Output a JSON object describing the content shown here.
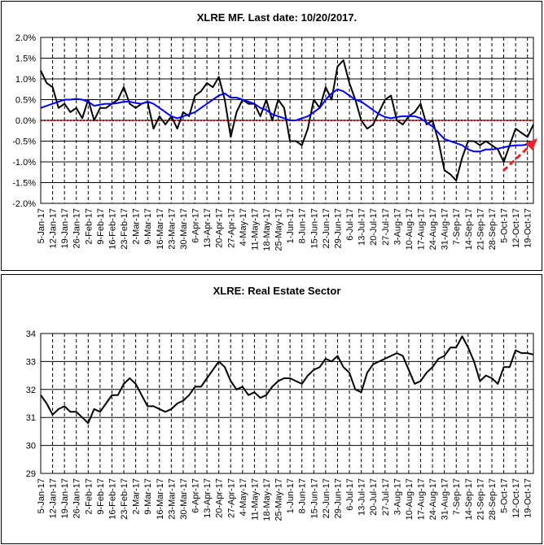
{
  "chart_data": [
    {
      "type": "line",
      "title": "XLRE MF. Last date: 10/20/2017.",
      "categories": [
        "5-Jan-17",
        null,
        "12-Jan-17",
        null,
        "19-Jan-17",
        null,
        "26-Jan-17",
        null,
        "2-Feb-17",
        null,
        "9-Feb-17",
        null,
        "16-Feb-17",
        null,
        "23-Feb-17",
        null,
        "2-Mar-17",
        null,
        "9-Mar-17",
        null,
        "16-Mar-17",
        null,
        "23-Mar-17",
        null,
        "30-Mar-17",
        null,
        "6-Apr-17",
        null,
        "13-Apr-17",
        null,
        "20-Apr-17",
        null,
        "27-Apr-17",
        null,
        "4-May-17",
        null,
        "11-May-17",
        null,
        "18-May-17",
        null,
        "25-May-17",
        null,
        "1-Jun-17",
        null,
        "8-Jun-17",
        null,
        "15-Jun-17",
        null,
        "22-Jun-17",
        null,
        "29-Jun-17",
        null,
        "6-Jul-17",
        null,
        "13-Jul-17",
        null,
        "20-Jul-17",
        null,
        "27-Jul-17",
        null,
        "3-Aug-17",
        null,
        "10-Aug-17",
        null,
        "17-Aug-17",
        null,
        "24-Aug-17",
        null,
        "31-Aug-17",
        null,
        "7-Sep-17",
        null,
        "14-Sep-17",
        null,
        "21-Sep-17",
        null,
        "28-Sep-17",
        null,
        "5-Oct-17",
        null,
        "12-Oct-17",
        null,
        "19-Oct-17",
        null
      ],
      "series": [
        {
          "color": "#000000",
          "values": [
            1.2,
            0.9,
            0.8,
            0.3,
            0.4,
            0.2,
            0.3,
            0.05,
            0.5,
            0.0,
            0.3,
            0.3,
            0.4,
            0.5,
            0.8,
            0.4,
            0.3,
            0.4,
            0.45,
            -0.2,
            0.1,
            -0.1,
            0.1,
            -0.2,
            0.2,
            0.1,
            0.6,
            0.7,
            0.9,
            0.8,
            1.05,
            0.5,
            -0.4,
            0.2,
            0.5,
            0.4,
            0.4,
            0.1,
            0.5,
            0.0,
            0.5,
            0.3,
            -0.5,
            -0.5,
            -0.6,
            -0.2,
            0.5,
            0.3,
            0.8,
            0.5,
            1.3,
            1.45,
            0.9,
            0.5,
            0.0,
            -0.2,
            -0.1,
            0.2,
            0.5,
            0.6,
            0.0,
            -0.1,
            0.1,
            0.2,
            0.4,
            -0.1,
            0.0,
            -0.5,
            -1.2,
            -1.3,
            -1.45,
            -0.9,
            -0.5,
            -0.5,
            -0.6,
            -0.5,
            -0.6,
            -0.7,
            -1.0,
            -0.6,
            -0.2,
            -0.3,
            -0.4,
            -0.1
          ]
        },
        {
          "color": "#0000ff",
          "values": [
            0.3,
            0.35,
            0.4,
            0.45,
            0.5,
            0.5,
            0.52,
            0.5,
            0.45,
            0.35,
            0.38,
            0.4,
            0.4,
            0.42,
            0.45,
            0.45,
            0.42,
            0.4,
            0.45,
            0.4,
            0.3,
            0.2,
            0.1,
            0.05,
            0.1,
            0.15,
            0.2,
            0.3,
            0.4,
            0.5,
            0.6,
            0.65,
            0.55,
            0.55,
            0.5,
            0.45,
            0.4,
            0.3,
            0.25,
            0.15,
            0.1,
            0.05,
            0.0,
            0.0,
            0.05,
            0.1,
            0.2,
            0.3,
            0.5,
            0.65,
            0.75,
            0.7,
            0.6,
            0.5,
            0.45,
            0.35,
            0.25,
            0.15,
            0.08,
            0.05,
            0.08,
            0.1,
            0.1,
            0.1,
            0.05,
            -0.05,
            -0.15,
            -0.3,
            -0.45,
            -0.5,
            -0.55,
            -0.6,
            -0.7,
            -0.75,
            -0.75,
            -0.7,
            -0.7,
            -0.68,
            -0.65,
            -0.62,
            -0.6,
            -0.6,
            -0.58,
            -0.55
          ]
        }
      ],
      "ylim": [
        -2.0,
        2.0
      ],
      "yticks": [
        {
          "value": -2.0,
          "label": "-2.0%"
        },
        {
          "value": -1.5,
          "label": "-1.5%"
        },
        {
          "value": -1.0,
          "label": "-1.0%"
        },
        {
          "value": -0.5,
          "label": "-0.5%"
        },
        {
          "value": 0.0,
          "label": "0.0%"
        },
        {
          "value": 0.5,
          "label": "0.5%"
        },
        {
          "value": 1.0,
          "label": "1.0%"
        },
        {
          "value": 1.5,
          "label": "1.5%"
        },
        {
          "value": 2.0,
          "label": "2.0%"
        }
      ],
      "grid": true,
      "zero_line": true,
      "zero_line_color": "#cc0000"
    },
    {
      "type": "line",
      "title": "XLRE: Real Estate Sector",
      "categories": [
        "5-Jan-17",
        null,
        "12-Jan-17",
        null,
        "19-Jan-17",
        null,
        "26-Jan-17",
        null,
        "2-Feb-17",
        null,
        "9-Feb-17",
        null,
        "16-Feb-17",
        null,
        "23-Feb-17",
        null,
        "2-Mar-17",
        null,
        "9-Mar-17",
        null,
        "16-Mar-17",
        null,
        "23-Mar-17",
        null,
        "30-Mar-17",
        null,
        "6-Apr-17",
        null,
        "13-Apr-17",
        null,
        "20-Apr-17",
        null,
        "27-Apr-17",
        null,
        "4-May-17",
        null,
        "11-May-17",
        null,
        "18-May-17",
        null,
        "25-May-17",
        null,
        "1-Jun-17",
        null,
        "8-Jun-17",
        null,
        "15-Jun-17",
        null,
        "22-Jun-17",
        null,
        "29-Jun-17",
        null,
        "6-Jul-17",
        null,
        "13-Jul-17",
        null,
        "20-Jul-17",
        null,
        "27-Jul-17",
        null,
        "3-Aug-17",
        null,
        "10-Aug-17",
        null,
        "17-Aug-17",
        null,
        "24-Aug-17",
        null,
        "31-Aug-17",
        null,
        "7-Sep-17",
        null,
        "14-Sep-17",
        null,
        "21-Sep-17",
        null,
        "28-Sep-17",
        null,
        "5-Oct-17",
        null,
        "12-Oct-17",
        null,
        "19-Oct-17",
        null
      ],
      "series": [
        {
          "color": "#000000",
          "values": [
            31.8,
            31.5,
            31.1,
            31.3,
            31.4,
            31.2,
            31.2,
            31.0,
            30.8,
            31.3,
            31.2,
            31.5,
            31.8,
            31.8,
            32.2,
            32.4,
            32.2,
            31.8,
            31.4,
            31.4,
            31.3,
            31.2,
            31.3,
            31.5,
            31.6,
            31.8,
            32.1,
            32.1,
            32.4,
            32.7,
            33.0,
            32.8,
            32.3,
            32.0,
            32.1,
            31.8,
            31.9,
            31.7,
            31.8,
            32.1,
            32.3,
            32.4,
            32.4,
            32.3,
            32.2,
            32.5,
            32.7,
            32.8,
            33.1,
            33.0,
            33.2,
            32.8,
            32.6,
            32.0,
            31.9,
            32.6,
            32.9,
            33.0,
            33.1,
            33.2,
            33.3,
            33.2,
            32.7,
            32.2,
            32.3,
            32.6,
            32.8,
            33.1,
            33.2,
            33.5,
            33.5,
            33.9,
            33.5,
            33.0,
            32.3,
            32.5,
            32.4,
            32.2,
            32.8,
            32.8,
            33.4,
            33.3,
            33.3,
            33.25
          ]
        }
      ],
      "ylim": [
        29,
        34
      ],
      "yticks": [
        29,
        30,
        31,
        32,
        33,
        34
      ],
      "grid": true
    }
  ]
}
